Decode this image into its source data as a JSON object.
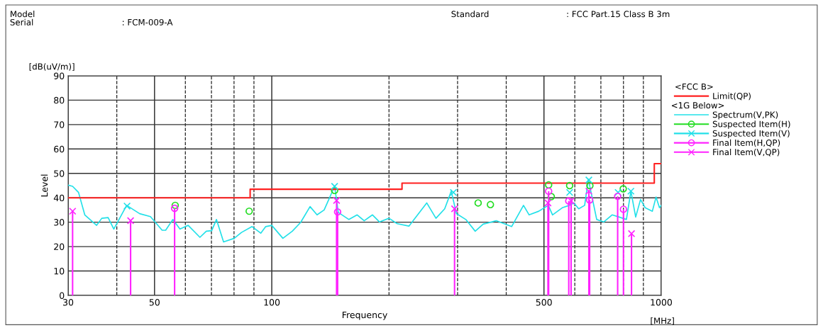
{
  "chart_data": {
    "type": "line",
    "xlabel": "Frequency",
    "ylabel": "Level",
    "legend_title": "<FCC B>",
    "annotations": [
      "Model",
      "Serial",
      ": FCM-009-A",
      "Standard",
      ": FCC Part.15 Class B 3m",
      "[dB(uV/m)]",
      "[MHz]",
      "<1G Below>"
    ],
    "log": "x",
    "grid": true,
    "legend": "right",
    "xlim": [
      30,
      1000
    ],
    "ylim": [
      0,
      90
    ],
    "xticks": [
      30,
      {
        "value": 40,
        "label": null
      },
      50,
      {
        "value": 60,
        "label": null
      },
      {
        "value": 70,
        "label": null
      },
      {
        "value": 80,
        "label": null
      },
      {
        "value": 90,
        "label": null
      },
      100,
      {
        "value": 200,
        "label": null
      },
      {
        "value": 300,
        "label": null
      },
      {
        "value": 400,
        "label": null
      },
      500,
      {
        "value": 600,
        "label": null
      },
      {
        "value": 700,
        "label": null
      },
      {
        "value": 800,
        "label": null
      },
      {
        "value": 900,
        "label": null
      },
      1000
    ],
    "yticks": [
      0,
      10,
      20,
      30,
      40,
      50,
      60,
      70,
      80,
      90
    ],
    "series": [
      {
        "name": "Limit(QP)",
        "type": "step",
        "color": "#ff2020",
        "marker": "none",
        "x": [
          30,
          88,
          216,
          960,
          1000
        ],
        "values": [
          40,
          43.5,
          46,
          54,
          54
        ]
      },
      {
        "name": "Spectrum(V,PK)",
        "color": "#22e0e8",
        "marker": "none",
        "x": [
          30,
          30.8,
          31.9,
          33.1,
          35.5,
          36.6,
          38,
          39.3,
          42.4,
          45.8,
          48.8,
          52.3,
          53.4,
          55.7,
          58.1,
          61,
          65.4,
          67.9,
          70.1,
          72.1,
          75.2,
          80.1,
          83.6,
          89,
          93.7,
          96.5,
          100,
          106.8,
          112.9,
          118.6,
          125.4,
          130.7,
          136.3,
          145,
          148.2,
          157.8,
          165.7,
          172.7,
          181.4,
          189.1,
          200,
          210,
          225,
          250,
          264,
          278,
          289,
          298,
          315,
          333,
          349,
          377,
          413,
          443,
          458,
          485,
          513,
          526,
          557,
          581,
          597,
          614,
          636,
          650,
          683,
          712,
          748,
          780,
          814,
          836,
          860,
          885,
          910,
          949,
          970,
          990,
          1000
        ],
        "values": [
          45.2,
          44.7,
          42.2,
          33.0,
          28.7,
          31.6,
          31.9,
          27.2,
          36.9,
          33.5,
          32.3,
          26.7,
          26.7,
          31.1,
          27.2,
          28.7,
          23.8,
          26.3,
          26.5,
          31.1,
          21.9,
          23.4,
          25.8,
          28.2,
          25.5,
          28.2,
          28.7,
          23.4,
          26.3,
          29.9,
          36.4,
          33.0,
          35.0,
          44.7,
          34.0,
          31.1,
          33.0,
          30.6,
          33.0,
          30.1,
          31.6,
          29.4,
          28.4,
          37.9,
          31.6,
          35.5,
          42.7,
          33.5,
          31.1,
          26.3,
          29.2,
          30.6,
          28.2,
          36.9,
          33.0,
          34.5,
          36.9,
          33.0,
          35.9,
          36.9,
          37.9,
          35.5,
          36.9,
          47.6,
          31.1,
          30.1,
          33.0,
          32.1,
          31.1,
          42.7,
          32.1,
          39.3,
          35.9,
          34.5,
          40.3,
          35.9,
          36.9
        ]
      },
      {
        "name": "Suspected Item(H)",
        "type": "scatter",
        "color": "#22dd22",
        "marker": "circle",
        "x": [
          56.5,
          87.5,
          145,
          338.8,
          364.3,
          514,
          522,
          582,
          656,
          799
        ],
        "values": [
          36.9,
          34.5,
          43.0,
          37.9,
          37.2,
          45.3,
          40.5,
          45.0,
          45.0,
          43.7
        ]
      },
      {
        "name": "Suspected Item(V)",
        "type": "scatter",
        "color": "#22e0e8",
        "marker": "cross",
        "x": [
          42.5,
          145,
          292.7,
          582,
          652,
          775,
          836
        ],
        "values": [
          36.6,
          44.7,
          42.2,
          42.2,
          47.3,
          42.2,
          42.7
        ]
      },
      {
        "name": "Final Item(H,QP)",
        "type": "lollipop",
        "color": "#ff22ff",
        "marker": "circle",
        "x": [
          56.3,
          147.6,
          514,
          579,
          655,
          773,
          800
        ],
        "values": [
          35.7,
          34.2,
          42.7,
          38.7,
          39.1,
          40.6,
          35.3
        ]
      },
      {
        "name": "Final Item(V,QP)",
        "type": "lollipop",
        "color": "#ff22ff",
        "marker": "cross",
        "x": [
          30.8,
          43.4,
          146.7,
          294.7,
          512,
          587,
          652,
          839
        ],
        "values": [
          34.5,
          30.6,
          38.9,
          35.5,
          37.9,
          38.7,
          42.7,
          25.3
        ]
      }
    ]
  }
}
